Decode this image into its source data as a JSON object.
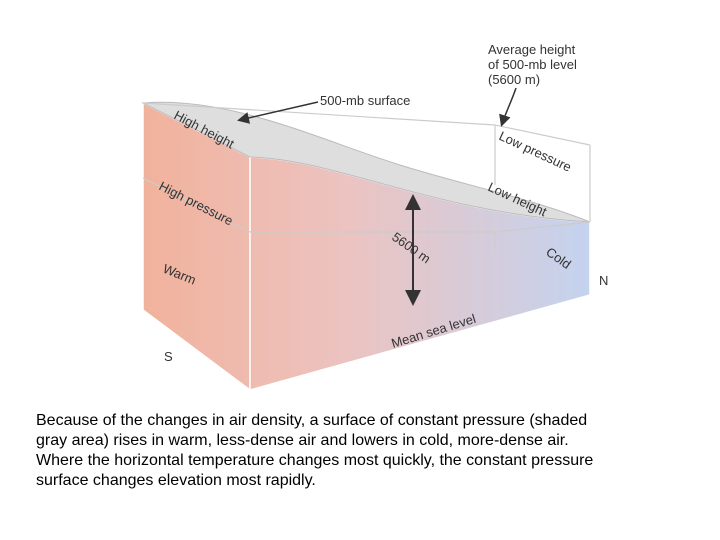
{
  "diagram": {
    "labels": {
      "average_height": [
        "Average height",
        "of 500-mb level",
        "(5600 m)"
      ],
      "surface": "500-mb surface",
      "high_height": "High height",
      "low_pressure": "Low pressure",
      "high_pressure": "High pressure",
      "low_height": "Low height",
      "thickness": "5600 m",
      "warm": "Warm",
      "cold": "Cold",
      "north": "N",
      "south": "S",
      "sea_level": "Mean sea level"
    }
  },
  "caption": [
    "Because of the changes in air density, a surface of constant pressure (shaded",
    "gray area) rises in warm, less-dense air and lowers in cold, more-dense air.",
    "Where the horizontal temperature changes most quickly, the constant pressure",
    "surface changes elevation most rapidly."
  ]
}
